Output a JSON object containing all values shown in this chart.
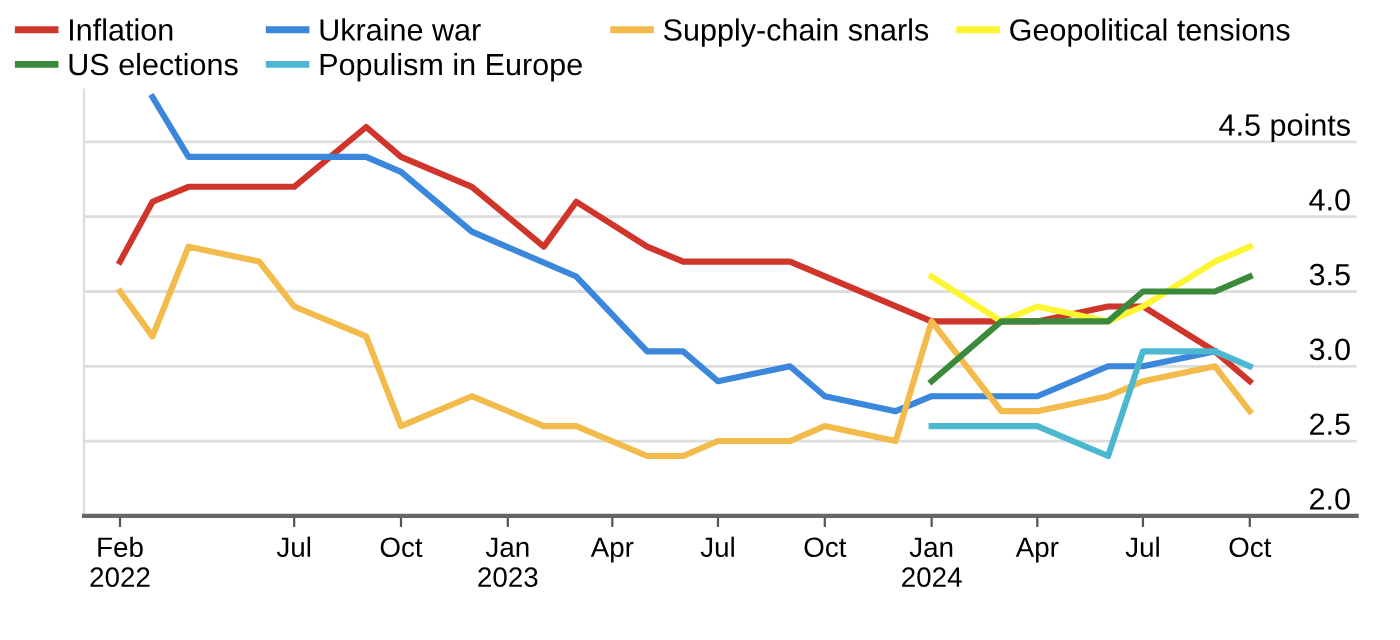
{
  "chart_data": {
    "type": "line",
    "legend": "top left",
    "grid": "y",
    "line_style": "solid",
    "marker": "none",
    "xlim": [
      "2022-01-01",
      "2025-01-01"
    ],
    "xticks": [
      {
        "value": "2022-02",
        "label": "Feb\n2022"
      },
      {
        "value": "2022-07",
        "label": "Jul"
      },
      {
        "value": "2022-10",
        "label": "Oct"
      },
      {
        "value": "2023-01",
        "label": "Jan\n2023"
      },
      {
        "value": "2023-04",
        "label": "Apr"
      },
      {
        "value": "2023-07",
        "label": "Jul"
      },
      {
        "value": "2023-10",
        "label": "Oct"
      },
      {
        "value": "2024-01",
        "label": "Jan\n2024"
      },
      {
        "value": "2024-04",
        "label": "Apr"
      },
      {
        "value": "2024-07",
        "label": "Jul"
      },
      {
        "value": "2024-10",
        "label": "Oct"
      }
    ],
    "ylim": [
      2.0,
      4.85
    ],
    "yticks": [
      {
        "value": 2.0,
        "label": "2.0"
      },
      2.5,
      {
        "value": 3.0,
        "label": "3.0"
      },
      3.5,
      {
        "value": 4.0,
        "label": "4.0"
      },
      {
        "value": 4.5,
        "label": "4.5 points"
      }
    ],
    "series": [
      {
        "name": "Inflation",
        "color": "#d0352b",
        "x": [
          "2022-02",
          "2022-03",
          "2022-04",
          "2022-05",
          "2022-06",
          "2022-07",
          "2022-09",
          "2022-10",
          "2022-12",
          "2023-02",
          "2023-03",
          "2023-05",
          "2023-06",
          "2023-09",
          "2024-01",
          "2024-04",
          "2024-06",
          "2024-07",
          "2024-09",
          "2024-10"
        ],
        "values": [
          3.7,
          4.1,
          4.2,
          4.2,
          4.2,
          4.2,
          4.6,
          4.4,
          4.2,
          3.8,
          4.1,
          3.8,
          3.7,
          3.7,
          3.3,
          3.3,
          3.4,
          3.4,
          3.1,
          2.9
        ]
      },
      {
        "name": "Ukraine war",
        "color": "#3a87dc",
        "x": [
          "2022-03",
          "2022-04",
          "2022-05",
          "2022-06",
          "2022-07",
          "2022-08",
          "2022-09",
          "2022-10",
          "2022-12",
          "2023-03",
          "2023-05",
          "2023-06",
          "2023-07",
          "2023-09",
          "2023-10",
          "2023-12",
          "2024-01",
          "2024-04",
          "2024-06",
          "2024-07",
          "2024-09"
        ],
        "values": [
          4.8,
          4.4,
          4.4,
          4.4,
          4.4,
          4.4,
          4.4,
          4.3,
          3.9,
          3.6,
          3.1,
          3.1,
          2.9,
          3.0,
          2.8,
          2.7,
          2.8,
          2.8,
          3.0,
          3.0,
          3.1
        ]
      },
      {
        "name": "Supply-chain snarls",
        "color": "#f2bb4b",
        "x": [
          "2022-02",
          "2022-03",
          "2022-04",
          "2022-06",
          "2022-07",
          "2022-09",
          "2022-10",
          "2022-12",
          "2023-02",
          "2023-03",
          "2023-05",
          "2023-06",
          "2023-07",
          "2023-09",
          "2023-10",
          "2023-12",
          "2024-01",
          "2024-03",
          "2024-04",
          "2024-06",
          "2024-07",
          "2024-09",
          "2024-10"
        ],
        "values": [
          3.5,
          3.2,
          3.8,
          3.7,
          3.4,
          3.2,
          2.6,
          2.8,
          2.6,
          2.6,
          2.4,
          2.4,
          2.5,
          2.5,
          2.6,
          2.5,
          3.3,
          2.7,
          2.7,
          2.8,
          2.9,
          3.0,
          2.7
        ]
      },
      {
        "name": "Geopolitical tensions",
        "color": "#fdf531",
        "x": [
          "2024-01",
          "2024-03",
          "2024-04",
          "2024-06",
          "2024-07",
          "2024-09",
          "2024-10"
        ],
        "values": [
          3.6,
          3.3,
          3.4,
          3.3,
          3.4,
          3.7,
          3.8
        ]
      },
      {
        "name": "US elections",
        "color": "#3b8a3c",
        "x": [
          "2024-01",
          "2024-03",
          "2024-06",
          "2024-07",
          "2024-09",
          "2024-10"
        ],
        "values": [
          2.9,
          3.3,
          3.3,
          3.5,
          3.5,
          3.6
        ]
      },
      {
        "name": "Populism in Europe",
        "color": "#4cb8d0",
        "x": [
          "2024-01",
          "2024-04",
          "2024-06",
          "2024-07",
          "2024-09",
          "2024-10"
        ],
        "values": [
          2.6,
          2.6,
          2.4,
          3.1,
          3.1,
          3.0
        ]
      }
    ]
  }
}
